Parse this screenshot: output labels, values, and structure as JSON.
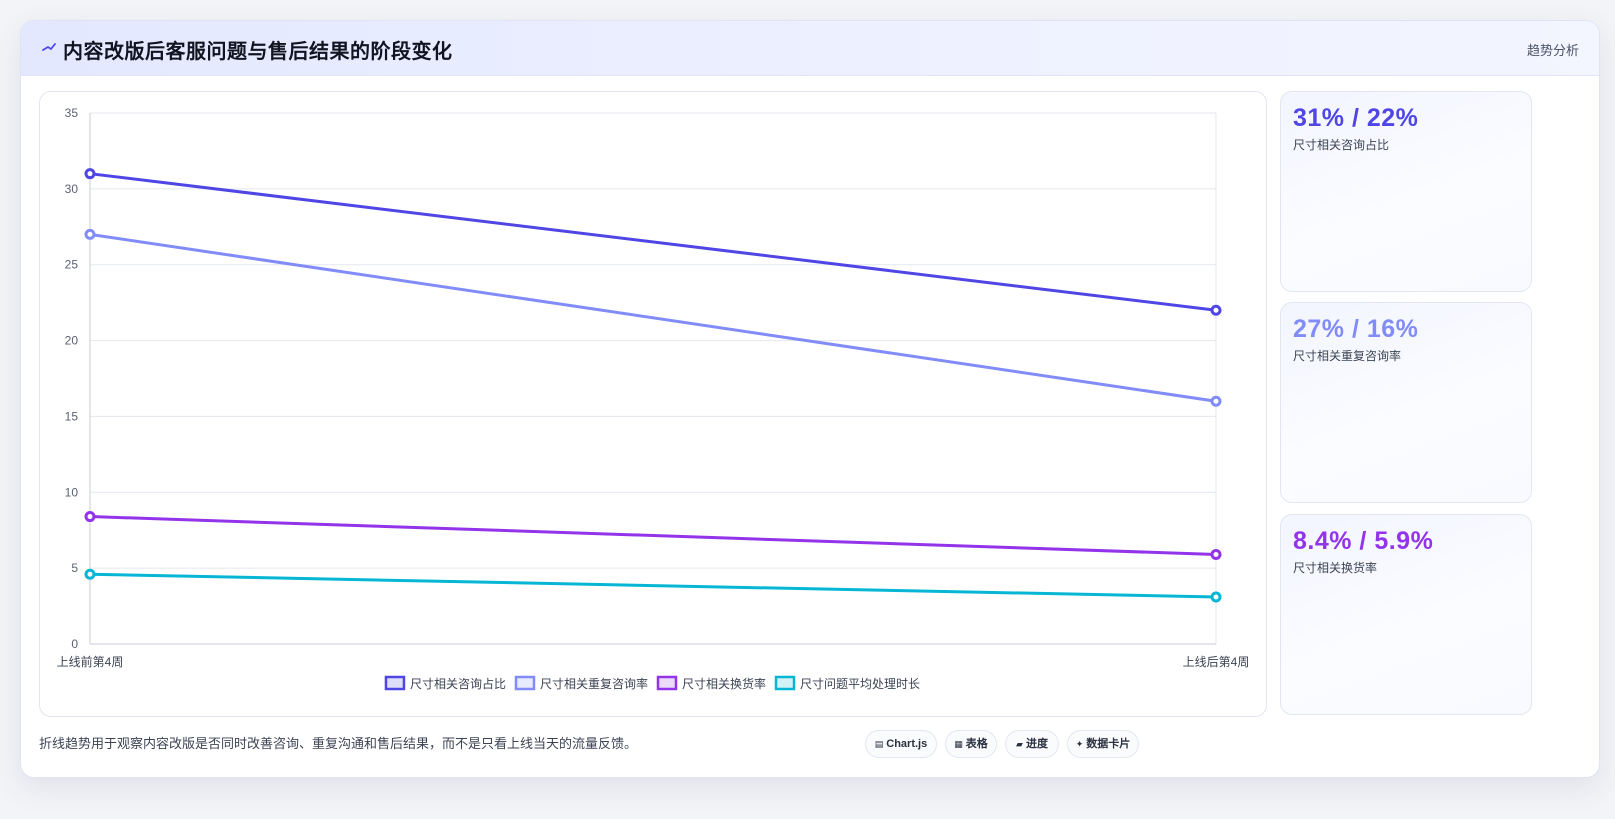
{
  "header": {
    "title": "内容改版后客服问题与售后结果的阶段变化",
    "tag": "趋势分析",
    "icon": "trend-line-icon"
  },
  "chart_data": {
    "type": "line",
    "title": "",
    "xlabel": "",
    "ylabel": "",
    "x": [
      "上线前第4周",
      "上线后第4周"
    ],
    "ylim": [
      0,
      35
    ],
    "yticks": [
      0,
      5,
      10,
      15,
      20,
      25,
      30,
      35
    ],
    "grid": true,
    "legend_position": "bottom",
    "series": [
      {
        "name": "尺寸相关咨询占比",
        "values": [
          31,
          22
        ],
        "color": "#4f46e5"
      },
      {
        "name": "尺寸相关重复咨询率",
        "values": [
          27,
          16
        ],
        "color": "#818cf8"
      },
      {
        "name": "尺寸相关换货率",
        "values": [
          8.4,
          5.9
        ],
        "color": "#9333ea"
      },
      {
        "name": "尺寸问题平均处理时长",
        "values": [
          4.6,
          3.1
        ],
        "color": "#06b6d4"
      }
    ]
  },
  "stats": [
    {
      "value": "31% / 22%",
      "label": "尺寸相关咨询占比",
      "color": "#4f46e5"
    },
    {
      "value": "27% / 16%",
      "label": "尺寸相关重复咨询率",
      "color": "#818cf8"
    },
    {
      "value": "8.4% / 5.9%",
      "label": "尺寸相关换货率",
      "color": "#9333ea"
    }
  ],
  "footer": {
    "note": "折线趋势用于观察内容改版是否同时改善咨询、重复沟通和售后结果，而不是只看上线当天的流量反馈。"
  },
  "pills": [
    {
      "label": "Chart.js",
      "icon": "chart-icon"
    },
    {
      "label": "表格",
      "icon": "table-icon"
    },
    {
      "label": "进度",
      "icon": "progress-icon"
    },
    {
      "label": "数据卡片",
      "icon": "sparkle-icon"
    }
  ]
}
